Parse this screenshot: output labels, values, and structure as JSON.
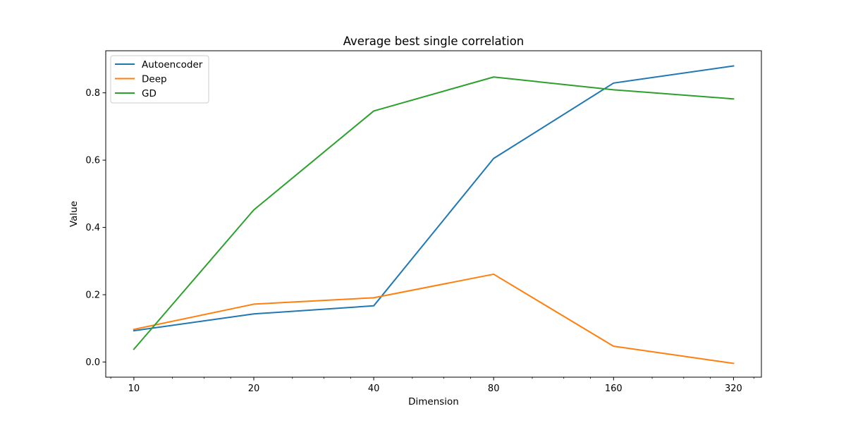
{
  "chart_data": {
    "type": "line",
    "title": "Average best single correlation",
    "xlabel": "Dimension",
    "ylabel": "Value",
    "x": [
      10,
      20,
      40,
      80,
      160,
      320
    ],
    "x_scale": "log2",
    "xlim": [
      8.5,
      376
    ],
    "ylim": [
      -0.045,
      0.925
    ],
    "x_tick_labels": [
      "10",
      "20",
      "40",
      "80",
      "160",
      "320"
    ],
    "y_ticks": [
      0.0,
      0.2,
      0.4,
      0.6,
      0.8
    ],
    "y_tick_labels": [
      "0.0",
      "0.2",
      "0.4",
      "0.6",
      "0.8"
    ],
    "grid": false,
    "legend_position": "top-left",
    "series": [
      {
        "name": "Autoencoder",
        "color": "#1f77b4",
        "values": [
          0.093,
          0.143,
          0.167,
          0.605,
          0.829,
          0.88
        ]
      },
      {
        "name": "Deep",
        "color": "#ff7f0e",
        "values": [
          0.097,
          0.172,
          0.191,
          0.261,
          0.047,
          -0.004
        ]
      },
      {
        "name": "GD",
        "color": "#2ca02c",
        "values": [
          0.038,
          0.452,
          0.746,
          0.847,
          0.809,
          0.782
        ]
      }
    ]
  }
}
